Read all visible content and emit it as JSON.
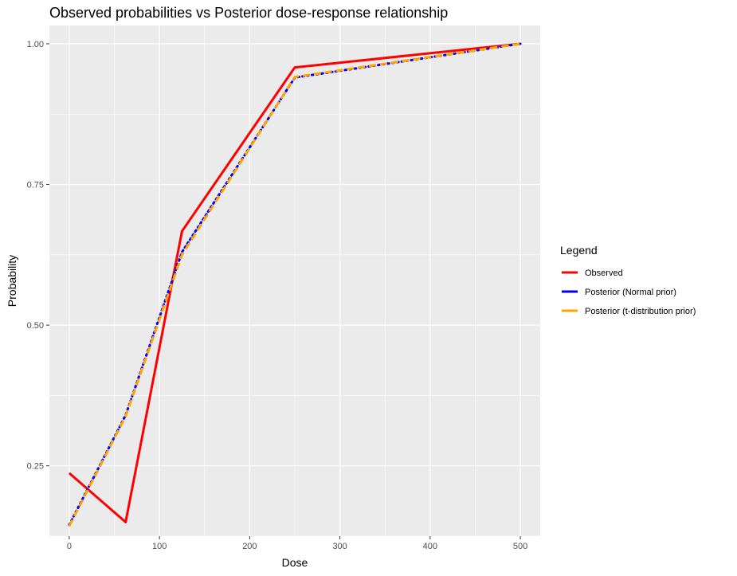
{
  "chart_data": {
    "type": "line",
    "title": "Observed probabilities vs Posterior dose-response relationship",
    "xlabel": "Dose",
    "ylabel": "Probability",
    "xlim": [
      -22,
      522
    ],
    "ylim": [
      0.125,
      1.0325
    ],
    "x_ticks": [
      0,
      100,
      200,
      300,
      400,
      500
    ],
    "y_ticks": [
      0.25,
      0.5,
      0.75,
      1.0
    ],
    "y_tick_labels": [
      "0.25",
      "0.50",
      "0.75",
      "1.00"
    ],
    "grid": true,
    "legend": {
      "title": "Legend",
      "placement": "right"
    },
    "series": [
      {
        "name": "Observed",
        "color": "#ff0000",
        "dash": "solid",
        "x": [
          0,
          62.5,
          125,
          250,
          500
        ],
        "y": [
          0.237,
          0.15,
          0.667,
          0.958,
          1.0
        ]
      },
      {
        "name": "Posterior (Normal prior)",
        "color": "#0000ff",
        "dash": "dotted",
        "x": [
          0,
          62.5,
          125,
          250,
          500
        ],
        "y": [
          0.145,
          0.34,
          0.63,
          0.94,
          1.0
        ]
      },
      {
        "name": "Posterior (t-distribution prior)",
        "color": "#ffa500",
        "dash": "dashed",
        "x": [
          0,
          62.5,
          125,
          250,
          500
        ],
        "y": [
          0.143,
          0.338,
          0.625,
          0.941,
          1.0
        ]
      }
    ]
  }
}
